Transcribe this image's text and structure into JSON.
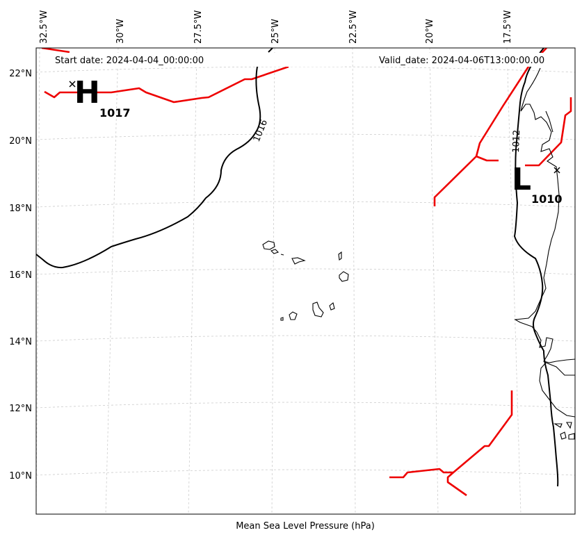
{
  "header": {
    "start_date": "Start date: 2024-04-04_00:00:00",
    "valid_date": "Valid_date: 2024-04-06T13:00:00.00"
  },
  "xlabel": "Mean Sea Level Pressure (hPa)",
  "longitude_ticks": [
    "32.5°W",
    "30°W",
    "27.5°W",
    "25°W",
    "22.5°W",
    "20°W",
    "17.5°W"
  ],
  "latitude_ticks": [
    "22°N",
    "20°N",
    "18°N",
    "16°N",
    "14°N",
    "12°N",
    "10°N"
  ],
  "pressure_centers": {
    "high": {
      "letter": "H",
      "value": "1017"
    },
    "low": {
      "letter": "L",
      "value": "1010"
    }
  },
  "isobar_labels": [
    "1016",
    "1012"
  ],
  "colors": {
    "front": "#ee0000",
    "isobar": "#000000",
    "grid": "#cccccc"
  }
}
